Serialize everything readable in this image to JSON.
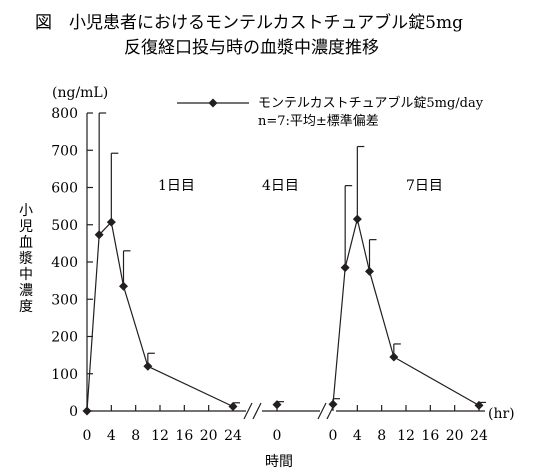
{
  "title": {
    "line1": "図　小児患者におけるモンテルカストチュアブル錠5mg",
    "line2": "反復経口投与時の血漿中濃度推移"
  },
  "chart_data": {
    "type": "line",
    "yunit": "(ng/mL)",
    "ylabel": "小児血漿中濃度",
    "xlabel": "時間",
    "xunit": "(hr)",
    "ylim": [
      0,
      800
    ],
    "yticks": [
      0,
      100,
      200,
      300,
      400,
      500,
      600,
      700,
      800
    ],
    "grid": false,
    "legend": {
      "line1": "モンテルカストチュアブル錠5mg/day",
      "line2": "n=7:平均±標準偏差",
      "placement": "top-right"
    },
    "segments": [
      {
        "day_label": "1日目",
        "xlim": [
          0,
          24
        ],
        "xticks": [
          0,
          4,
          8,
          12,
          16,
          20,
          24
        ],
        "points": [
          {
            "x": 0,
            "y": 0,
            "err": 0
          },
          {
            "x": 2,
            "y": 473,
            "err": 327
          },
          {
            "x": 4,
            "y": 507,
            "err": 185
          },
          {
            "x": 6,
            "y": 335,
            "err": 95
          },
          {
            "x": 10,
            "y": 120,
            "err": 35
          },
          {
            "x": 24,
            "y": 12,
            "err": 10
          }
        ]
      },
      {
        "day_label": "4日目",
        "xlim": [
          -4,
          4
        ],
        "xticks": [
          0
        ],
        "points": [
          {
            "x": 0,
            "y": 17,
            "err": 8
          }
        ]
      },
      {
        "day_label": "7日目",
        "xlim": [
          0,
          24
        ],
        "xticks": [
          0,
          4,
          8,
          12,
          16,
          20,
          24
        ],
        "points": [
          {
            "x": 0,
            "y": 18,
            "err": 15
          },
          {
            "x": 2,
            "y": 385,
            "err": 220
          },
          {
            "x": 4,
            "y": 515,
            "err": 195
          },
          {
            "x": 6,
            "y": 375,
            "err": 85
          },
          {
            "x": 10,
            "y": 145,
            "err": 35
          },
          {
            "x": 24,
            "y": 15,
            "err": 8
          }
        ]
      }
    ],
    "colors": {
      "line": "#231f20",
      "text": "#231f20"
    }
  }
}
